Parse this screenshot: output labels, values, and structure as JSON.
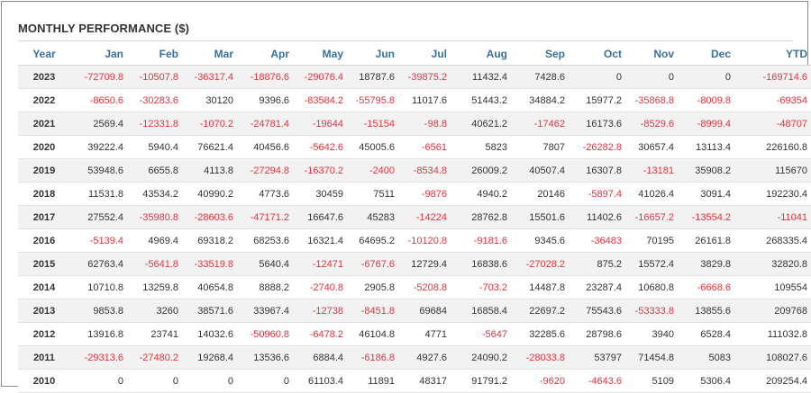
{
  "title": "MONTHLY PERFORMANCE ($)",
  "colors": {
    "negative": "#e5323b",
    "positive": "#333333",
    "header": "#3a6f9e"
  },
  "columns": [
    "Year",
    "Jan",
    "Feb",
    "Mar",
    "Apr",
    "May",
    "Jun",
    "Jul",
    "Aug",
    "Sep",
    "Oct",
    "Nov",
    "Dec",
    "YTD"
  ],
  "rows": [
    [
      "2023",
      "-72709.8",
      "-10507.8",
      "-36317.4",
      "-18876.6",
      "-29076.4",
      "18787.6",
      "-39875.2",
      "11432.4",
      "7428.6",
      "0",
      "0",
      "0",
      "-169714.6"
    ],
    [
      "2022",
      "-8650.6",
      "-30283.6",
      "30120",
      "9396.6",
      "-83584.2",
      "-55795.8",
      "11017.6",
      "51443.2",
      "34884.2",
      "15977.2",
      "-35868.8",
      "-8009.8",
      "-69354"
    ],
    [
      "2021",
      "2569.4",
      "-12331.8",
      "-1070.2",
      "-24781.4",
      "-19644",
      "-15154",
      "-98.8",
      "40621.2",
      "-17462",
      "16173.6",
      "-8529.6",
      "-8999.4",
      "-48707"
    ],
    [
      "2020",
      "39222.4",
      "5940.4",
      "76621.4",
      "40456.6",
      "-5642.6",
      "45005.6",
      "-6561",
      "5823",
      "7807",
      "-26282.8",
      "30657.4",
      "13113.4",
      "226160.8"
    ],
    [
      "2019",
      "53948.6",
      "6655.8",
      "4113.8",
      "-27294.8",
      "-16370.2",
      "-2400",
      "-8534.8",
      "26009.2",
      "40507.4",
      "16307.8",
      "-13181",
      "35908.2",
      "115670"
    ],
    [
      "2018",
      "11531.8",
      "43534.2",
      "40990.2",
      "4773.6",
      "30459",
      "7511",
      "-9876",
      "4940.2",
      "20146",
      "-5897.4",
      "41026.4",
      "3091.4",
      "192230.4"
    ],
    [
      "2017",
      "27552.4",
      "-35980.8",
      "-28603.6",
      "-47171.2",
      "16647.6",
      "45283",
      "-14224",
      "28762.8",
      "15501.6",
      "11402.6",
      "-16657.2",
      "-13554.2",
      "-11041"
    ],
    [
      "2016",
      "-5139.4",
      "4969.4",
      "69318.2",
      "68253.6",
      "16321.4",
      "64695.2",
      "-10120.8",
      "-9181.6",
      "9345.6",
      "-36483",
      "70195",
      "26161.8",
      "268335.4"
    ],
    [
      "2015",
      "62763.4",
      "-5641.8",
      "-33519.8",
      "5640.4",
      "-12471",
      "-6767.6",
      "12729.4",
      "16838.6",
      "-27028.2",
      "875.2",
      "15572.4",
      "3829.8",
      "32820.8"
    ],
    [
      "2014",
      "10710.8",
      "13259.8",
      "40654.8",
      "8888.2",
      "-2740.8",
      "2905.8",
      "-5208.8",
      "-703.2",
      "14487.8",
      "23287.4",
      "10680.8",
      "-6668.6",
      "109554"
    ],
    [
      "2013",
      "9853.8",
      "3260",
      "38571.6",
      "33967.4",
      "-12738",
      "-8451.8",
      "69684",
      "16858.4",
      "22697.2",
      "75543.6",
      "-53333.8",
      "13855.6",
      "209768"
    ],
    [
      "2012",
      "13916.8",
      "23741",
      "14032.6",
      "-50960.8",
      "-6478.2",
      "46104.8",
      "4771",
      "-5647",
      "32285.6",
      "28798.6",
      "3940",
      "6528.4",
      "111032.8"
    ],
    [
      "2011",
      "-29313.6",
      "-27480.2",
      "19268.4",
      "13536.6",
      "6884.4",
      "-6186.8",
      "4927.6",
      "24090.2",
      "-28033.8",
      "53797",
      "71454.8",
      "5083",
      "108027.6"
    ],
    [
      "2010",
      "0",
      "0",
      "0",
      "0",
      "61103.4",
      "11891",
      "48317",
      "91791.2",
      "-9620",
      "-4643.6",
      "5109",
      "5306.4",
      "209254.4"
    ]
  ]
}
